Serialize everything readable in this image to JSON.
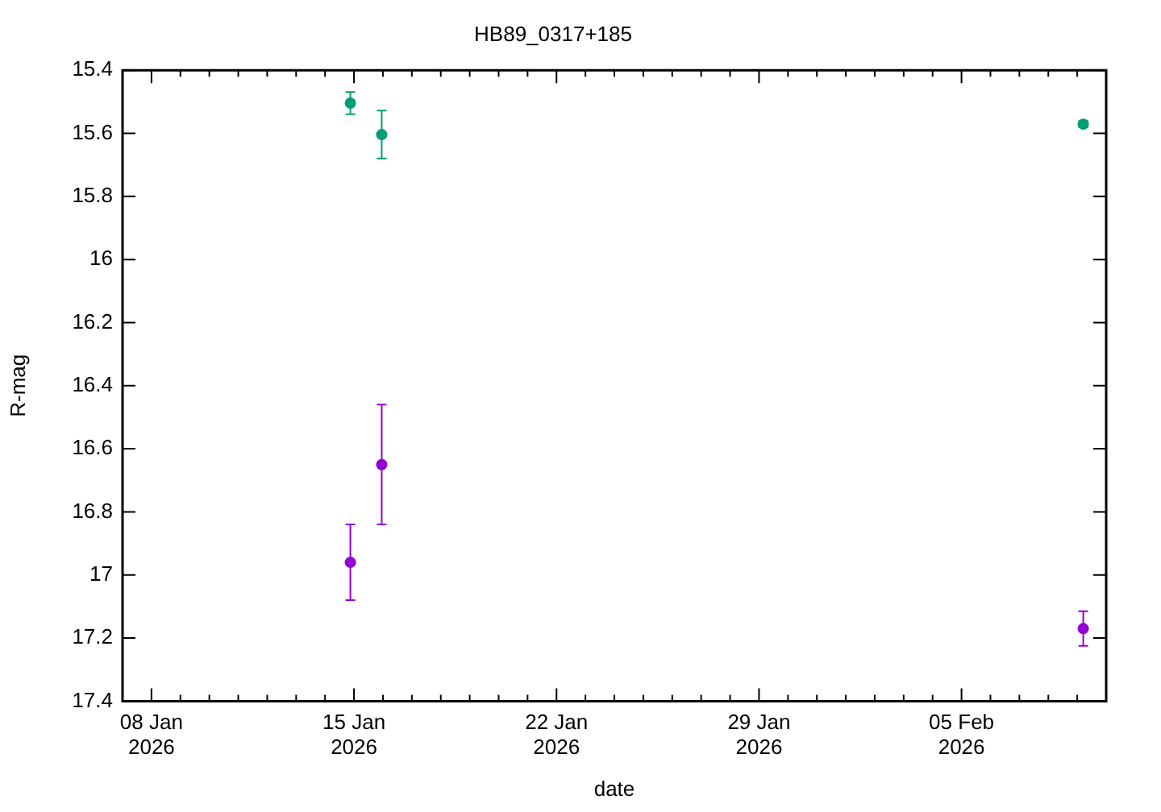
{
  "chart_data": {
    "type": "scatter",
    "title": "HB89_0317+185",
    "xlabel": "date",
    "ylabel": "R-mag",
    "xlim": [
      "2026-01-07",
      "2026-02-10"
    ],
    "xticks": [
      {
        "value": "2026-01-08",
        "label": "08 Jan\n2026"
      },
      {
        "value": "2026-01-15",
        "label": "15 Jan\n2026"
      },
      {
        "value": "2026-01-22",
        "label": "22 Jan\n2026"
      },
      {
        "value": "2026-01-29",
        "label": "29 Jan\n2026"
      },
      {
        "value": "2026-02-05",
        "label": "05 Feb\n2026"
      }
    ],
    "ylim": [
      17.4,
      15.4
    ],
    "yticks": [
      15.4,
      15.6,
      15.8,
      16,
      16.2,
      16.4,
      16.6,
      16.8,
      17,
      17.2,
      17.4
    ],
    "grid": false,
    "legend": false,
    "marker": "circle",
    "series": [
      {
        "color": "#009e73",
        "x": [
          "2026-01-14T21:00",
          "2026-01-15T23:00",
          "2026-02-09T05:00"
        ],
        "values": [
          15.504,
          15.604,
          15.571
        ],
        "errors": [
          0.035,
          0.076,
          0.01
        ]
      },
      {
        "color": "#9400d3",
        "x": [
          "2026-01-14T21:00",
          "2026-01-15T23:00",
          "2026-02-09T05:00"
        ],
        "values": [
          16.96,
          16.65,
          17.17
        ],
        "errors": [
          0.12,
          0.19,
          0.055
        ]
      }
    ]
  }
}
